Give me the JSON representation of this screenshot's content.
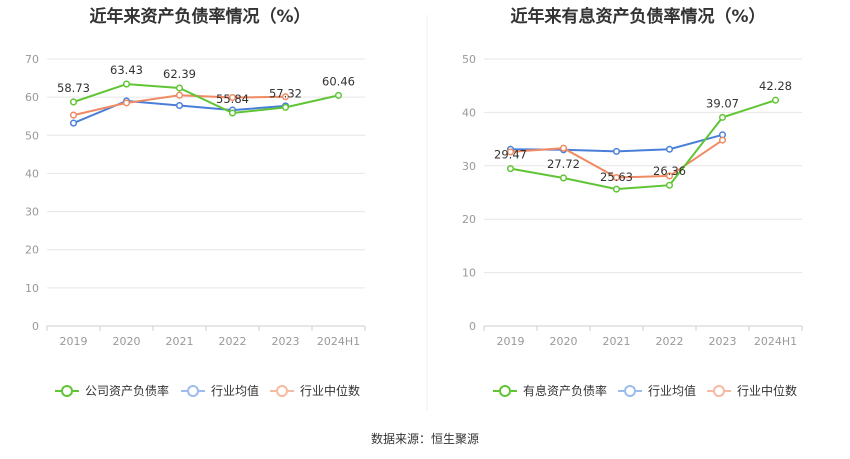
{
  "source_label": "数据来源：恒生聚源",
  "chart_data": [
    {
      "type": "line",
      "title": "近年来资产负债率情况（%）",
      "categories": [
        "2019",
        "2020",
        "2021",
        "2022",
        "2023",
        "2024H1"
      ],
      "ylim": [
        0,
        70
      ],
      "yticks": [
        0,
        10,
        20,
        30,
        40,
        50,
        60,
        70
      ],
      "series": [
        {
          "name": "公司资产负债率",
          "color": "#5fc534",
          "values": [
            58.73,
            63.43,
            62.39,
            55.84,
            57.32,
            60.46
          ],
          "labels": [
            "58.73",
            "63.43",
            "62.39",
            "55.84",
            "57.32",
            "60.46"
          ]
        },
        {
          "name": "行业均值",
          "color": "#4a7fd9",
          "values": [
            53.2,
            59.0,
            57.8,
            56.6,
            57.7,
            null
          ]
        },
        {
          "name": "行业中位数",
          "color": "#f08a63",
          "values": [
            55.3,
            58.5,
            60.5,
            59.9,
            60.1,
            null
          ]
        }
      ]
    },
    {
      "type": "line",
      "title": "近年来有息资产负债率情况（%）",
      "categories": [
        "2019",
        "2020",
        "2021",
        "2022",
        "2023",
        "2024H1"
      ],
      "ylim": [
        0,
        50
      ],
      "yticks": [
        0,
        10,
        20,
        30,
        40,
        50
      ],
      "series": [
        {
          "name": "有息资产负债率",
          "color": "#5fc534",
          "values": [
            29.47,
            27.72,
            25.63,
            26.36,
            39.07,
            42.28
          ],
          "labels": [
            "29.47",
            "27.72",
            "25.63",
            "26.36",
            "39.07",
            "42.28"
          ]
        },
        {
          "name": "行业均值",
          "color": "#4a7fd9",
          "values": [
            33.1,
            33.0,
            32.7,
            33.1,
            35.8,
            null
          ]
        },
        {
          "name": "行业中位数",
          "color": "#f08a63",
          "values": [
            32.6,
            33.3,
            27.8,
            28.1,
            34.8,
            null
          ]
        }
      ]
    }
  ]
}
